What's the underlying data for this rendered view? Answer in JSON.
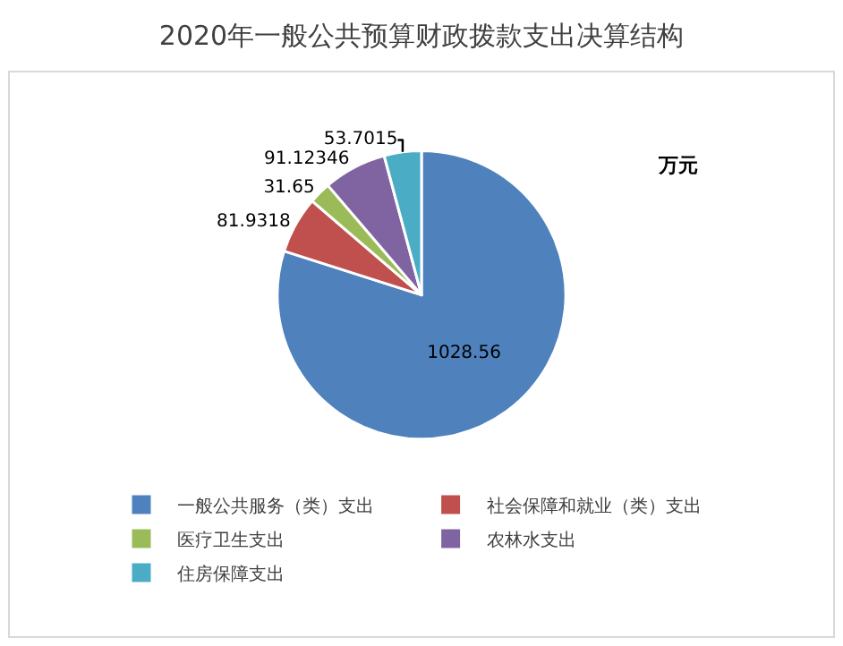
{
  "chart_data": {
    "type": "pie",
    "title": "2020年一般公共预算财政拨款支出决算结构",
    "categories": [
      "一般公共服务（类）支出",
      "社会保障和就业（类）支出",
      "医疗卫生支出",
      "农林水支出",
      "住房保障支出"
    ],
    "values": [
      1028.56,
      81.9318,
      31.65,
      91.12346,
      53.7015
    ],
    "colors": [
      "#4f81bd",
      "#c0504d",
      "#9bbb59",
      "#8064a2",
      "#4bacc6"
    ],
    "annotations": [
      "万元"
    ],
    "data_labels": true,
    "legend": "bottom"
  }
}
